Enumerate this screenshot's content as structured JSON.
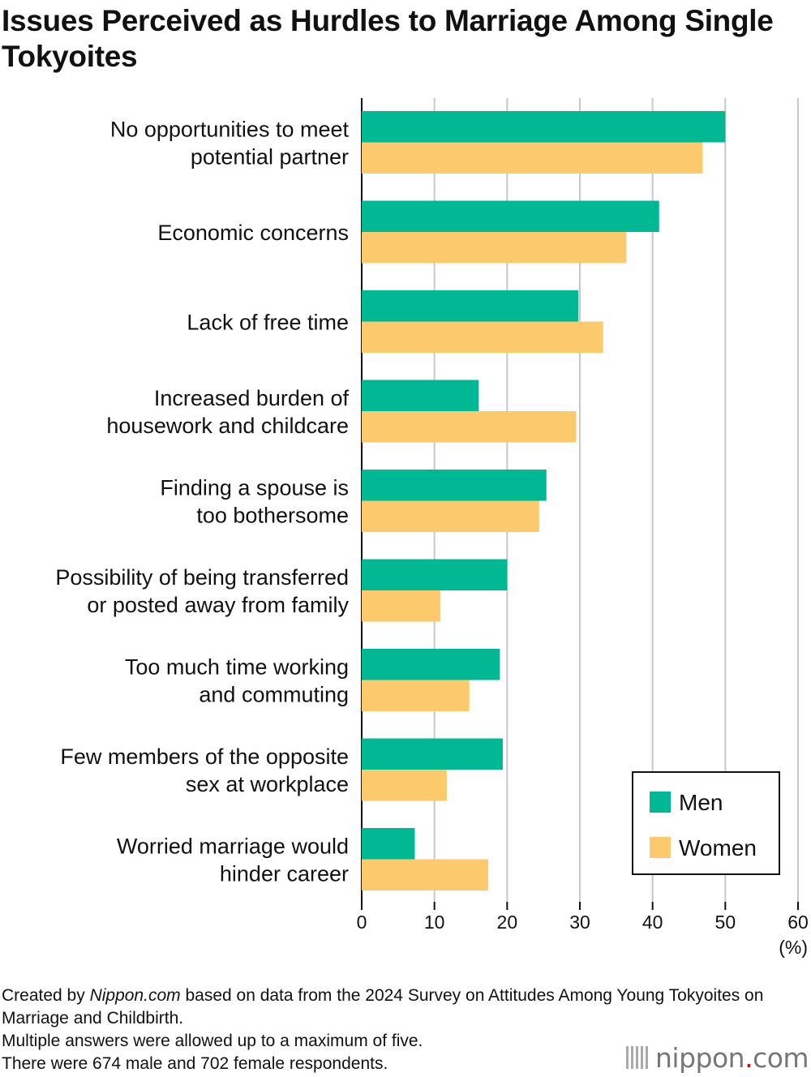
{
  "title": "Issues Perceived as Hurdles to Marriage Among Single Tokyoites",
  "chart_data": {
    "type": "bar",
    "orientation": "horizontal",
    "title": "Issues Perceived as Hurdles to Marriage Among Single Tokyoites",
    "categories": [
      [
        "No opportunities to meet",
        "potential partner"
      ],
      [
        "Economic concerns"
      ],
      [
        "Lack of free time"
      ],
      [
        "Increased burden of",
        "housework and childcare"
      ],
      [
        "Finding a spouse is",
        "too bothersome"
      ],
      [
        "Possibility of being transferred",
        "or posted away from family"
      ],
      [
        "Too much time working",
        "and commuting"
      ],
      [
        "Few members of the opposite",
        "sex at workplace"
      ],
      [
        "Worried marriage would",
        "hinder career"
      ]
    ],
    "series": [
      {
        "name": "Men",
        "color": "#00b894",
        "values": [
          50.0,
          40.9,
          29.8,
          16.1,
          25.4,
          20.0,
          19.0,
          19.4,
          7.3
        ]
      },
      {
        "name": "Women",
        "color": "#fdc96d",
        "values": [
          46.9,
          36.4,
          33.2,
          29.5,
          24.4,
          10.8,
          14.8,
          11.7,
          17.4
        ]
      }
    ],
    "xlim": [
      0,
      60
    ],
    "xticks": [
      "0",
      "10",
      "20",
      "30",
      "40",
      "50",
      "60"
    ],
    "xticks_values": [
      0,
      10,
      20,
      30,
      40,
      50,
      60
    ],
    "xlabel": "(%)",
    "grid": true,
    "legend": "bottom-right"
  },
  "footer": {
    "line1_prefix": "Created by ",
    "line1_source": "Nippon.com",
    "line1_suffix": " based on data from the 2024 Survey on Attitudes Among Young Tokyoites on Marriage and Childbirth.",
    "line2": "Multiple answers were allowed up to a maximum of five.",
    "line3": "There were 674 male and 702 female respondents."
  },
  "logo": {
    "name": "nippon",
    "dot": ".",
    "tld": "com"
  }
}
